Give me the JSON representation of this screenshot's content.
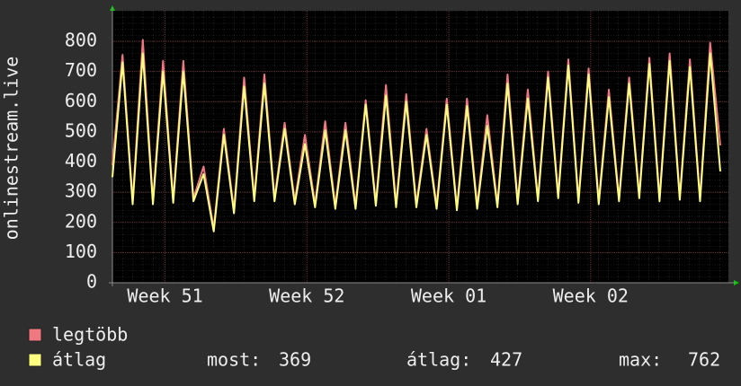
{
  "chart_data": {
    "type": "line",
    "ylabel": "onlinestream.live",
    "x": [
      0,
      0.5,
      1,
      1.5,
      2,
      2.5,
      3,
      3.5,
      4,
      4.5,
      5,
      5.5,
      6,
      6.5,
      7,
      7.5,
      8,
      8.5,
      9,
      9.5,
      10,
      10.5,
      11,
      11.5,
      12,
      12.5,
      13,
      13.5,
      14,
      14.5,
      15,
      15.5,
      16,
      16.5,
      17,
      17.5,
      18,
      18.5,
      19,
      19.5,
      20,
      20.5,
      21,
      21.5,
      22,
      22.5,
      23,
      23.5,
      24,
      24.5,
      25,
      25.5,
      26,
      26.5,
      27,
      27.5,
      28,
      28.5,
      29,
      29.5,
      30
    ],
    "xlim": [
      0,
      30.4
    ],
    "xticks": [
      {
        "value": 2.6,
        "label": "Week 51"
      },
      {
        "value": 9.6,
        "label": "Week 52"
      },
      {
        "value": 16.6,
        "label": "Week 01"
      },
      {
        "value": 23.6,
        "label": "Week 02"
      }
    ],
    "ylim": [
      0,
      800
    ],
    "yticks": [
      0,
      100,
      200,
      300,
      400,
      500,
      600,
      700,
      800
    ],
    "grid": true,
    "series": [
      {
        "name": "legtöbb",
        "color": "#f07880",
        "values": [
          390,
          755,
          270,
          805,
          270,
          735,
          275,
          735,
          280,
          385,
          180,
          510,
          240,
          680,
          280,
          690,
          280,
          530,
          270,
          490,
          260,
          535,
          255,
          530,
          255,
          605,
          265,
          655,
          260,
          625,
          260,
          510,
          255,
          610,
          250,
          610,
          255,
          555,
          260,
          690,
          270,
          640,
          280,
          700,
          290,
          740,
          275,
          710,
          270,
          640,
          280,
          680,
          290,
          745,
          280,
          760,
          285,
          740,
          280,
          795,
          455
        ]
      },
      {
        "name": "átlag",
        "color": "#ffff80",
        "values": [
          350,
          730,
          260,
          760,
          260,
          700,
          265,
          700,
          270,
          360,
          170,
          490,
          230,
          650,
          270,
          660,
          270,
          510,
          260,
          460,
          250,
          505,
          245,
          505,
          245,
          590,
          255,
          620,
          250,
          600,
          250,
          490,
          245,
          590,
          240,
          585,
          245,
          520,
          250,
          660,
          260,
          610,
          270,
          680,
          280,
          720,
          265,
          690,
          260,
          615,
          270,
          660,
          280,
          725,
          270,
          735,
          275,
          715,
          270,
          760,
          369
        ]
      }
    ],
    "stats": [
      {
        "label": "most:",
        "value": 369
      },
      {
        "label": "átlag:",
        "value": 427
      },
      {
        "label": "max:",
        "value": 762
      }
    ]
  }
}
